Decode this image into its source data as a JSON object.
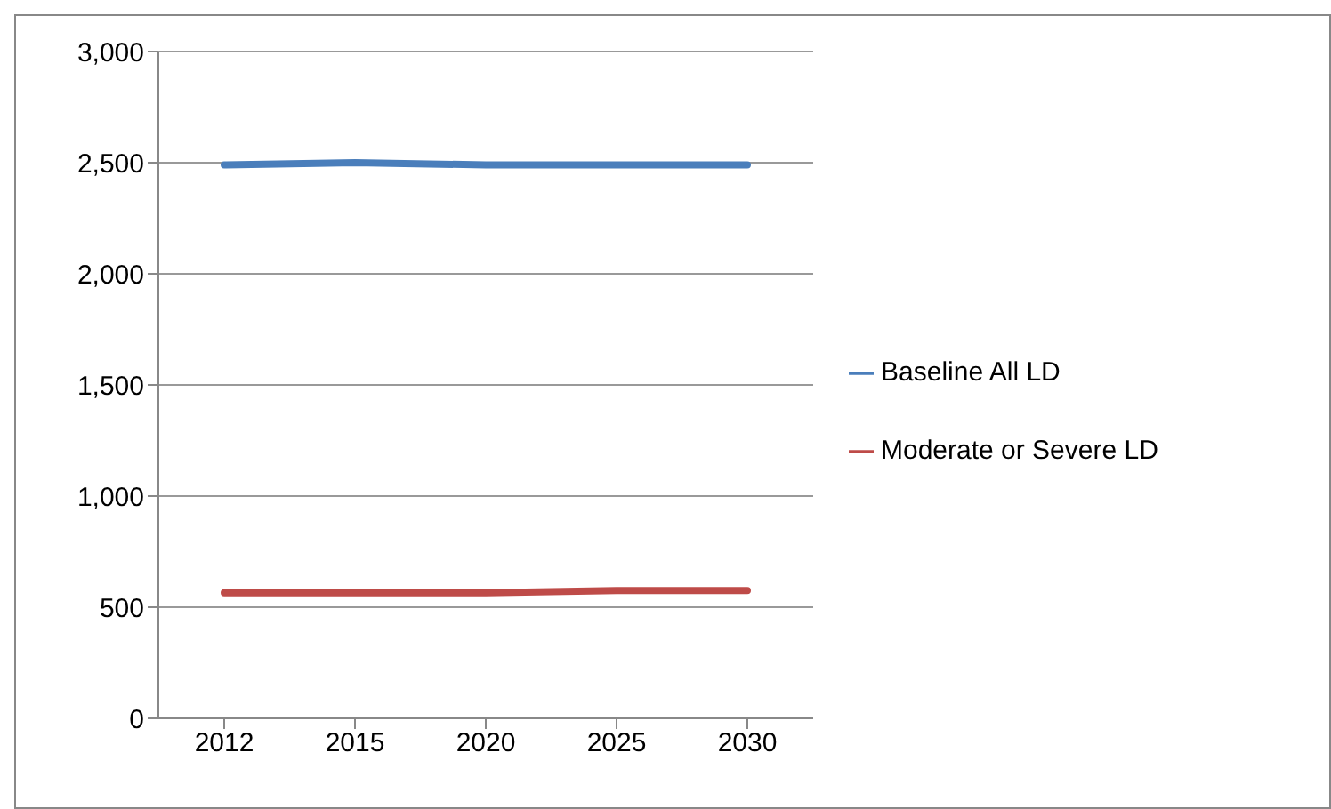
{
  "chart_data": {
    "type": "line",
    "categories": [
      "2012",
      "2015",
      "2020",
      "2025",
      "2030"
    ],
    "series": [
      {
        "name": "Baseline All LD",
        "color": "#4a7ebb",
        "values": [
          2490,
          2500,
          2490,
          2490,
          2490
        ]
      },
      {
        "name": "Moderate or Severe LD",
        "color": "#be4b48",
        "values": [
          565,
          565,
          565,
          575,
          575
        ]
      }
    ],
    "ylim": [
      0,
      3000
    ],
    "yticks": [
      0,
      500,
      {
        "value": 1000,
        "label": "1,000"
      },
      {
        "value": 1500,
        "label": "1,500"
      },
      {
        "value": 2000,
        "label": "2,000"
      },
      {
        "value": 2500,
        "label": "2,500"
      },
      {
        "value": 3000,
        "label": "3,000"
      }
    ],
    "grid": "y",
    "legend": "right",
    "marker": "none"
  }
}
